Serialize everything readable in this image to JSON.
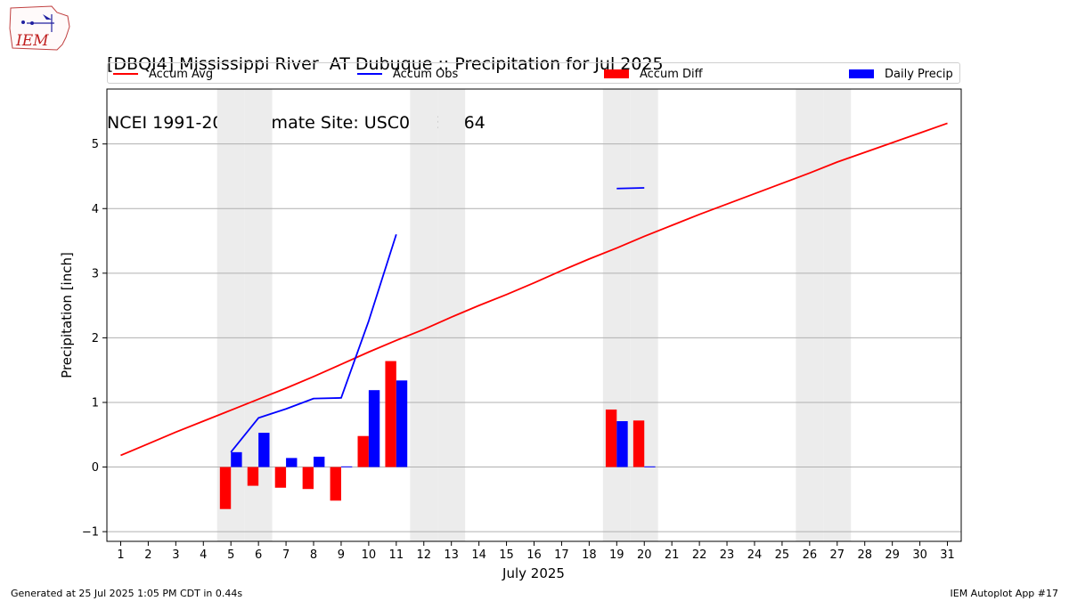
{
  "logo": {
    "text": "IEM"
  },
  "title_line1": "[DBQI4] Mississippi River  AT Dubuque :: Precipitation for Jul 2025",
  "title_line2": "NCEI 1991-2020 Climate Site: USC00132364",
  "colors": {
    "avg": "#ff0000",
    "obs": "#0000ff",
    "diff": "#ff0000",
    "daily": "#0000ff",
    "weekend": "#ececec",
    "grid": "#b0b0b0"
  },
  "chart_data": {
    "type": "bar",
    "title": "[DBQI4] Mississippi River  AT Dubuque :: Precipitation for Jul 2025",
    "subtitle": "NCEI 1991-2020 Climate Site: USC00132364",
    "xlabel": "July 2025",
    "ylabel": "Precipitation [inch]",
    "ylim": [
      -1.15,
      5.85
    ],
    "xlim": [
      0.5,
      31.5
    ],
    "yticks": [
      -1,
      0,
      1,
      2,
      3,
      4,
      5
    ],
    "x": [
      1,
      2,
      3,
      4,
      5,
      6,
      7,
      8,
      9,
      10,
      11,
      12,
      13,
      14,
      15,
      16,
      17,
      18,
      19,
      20,
      21,
      22,
      23,
      24,
      25,
      26,
      27,
      28,
      29,
      30,
      31
    ],
    "weekend_days": [
      5,
      6,
      12,
      13,
      19,
      20,
      26,
      27
    ],
    "grid": true,
    "legend_position": "top",
    "legend": [
      "Accum Avg",
      "Accum Obs",
      "Accum Diff",
      "Daily Precip"
    ],
    "series": [
      {
        "name": "Accum Avg",
        "kind": "line",
        "color": "#ff0000",
        "values": [
          0.18,
          0.36,
          0.54,
          0.71,
          0.88,
          1.05,
          1.22,
          1.4,
          1.59,
          1.78,
          1.96,
          2.13,
          2.32,
          2.5,
          2.67,
          2.85,
          3.04,
          3.22,
          3.39,
          3.57,
          3.74,
          3.91,
          4.07,
          4.23,
          4.39,
          4.55,
          4.72,
          4.87,
          5.02,
          5.17,
          5.32
        ]
      },
      {
        "name": "Accum Obs",
        "kind": "line",
        "color": "#0000ff",
        "values": [
          null,
          null,
          null,
          null,
          0.23,
          0.76,
          0.9,
          1.06,
          1.07,
          2.26,
          3.6,
          null,
          null,
          null,
          null,
          null,
          null,
          null,
          4.31,
          4.32,
          null,
          null,
          null,
          null,
          null,
          null,
          null,
          null,
          null,
          null,
          null
        ]
      },
      {
        "name": "Accum Diff",
        "kind": "bar",
        "color": "#ff0000",
        "values": [
          null,
          null,
          null,
          null,
          -0.65,
          -0.29,
          -0.32,
          -0.34,
          -0.52,
          0.48,
          1.64,
          null,
          null,
          null,
          null,
          null,
          null,
          null,
          0.89,
          0.72,
          null,
          null,
          null,
          null,
          null,
          null,
          null,
          null,
          null,
          null,
          null
        ]
      },
      {
        "name": "Daily Precip",
        "kind": "bar",
        "color": "#0000ff",
        "values": [
          null,
          null,
          null,
          null,
          0.23,
          0.53,
          0.14,
          0.16,
          0.01,
          1.19,
          1.34,
          null,
          null,
          null,
          null,
          null,
          null,
          null,
          0.71,
          0.01,
          null,
          null,
          null,
          null,
          null,
          null,
          null,
          null,
          null,
          null,
          null
        ]
      }
    ]
  },
  "footer": {
    "left": "Generated at 25 Jul 2025 1:05 PM CDT in 0.44s",
    "right": "IEM Autoplot App #17"
  }
}
